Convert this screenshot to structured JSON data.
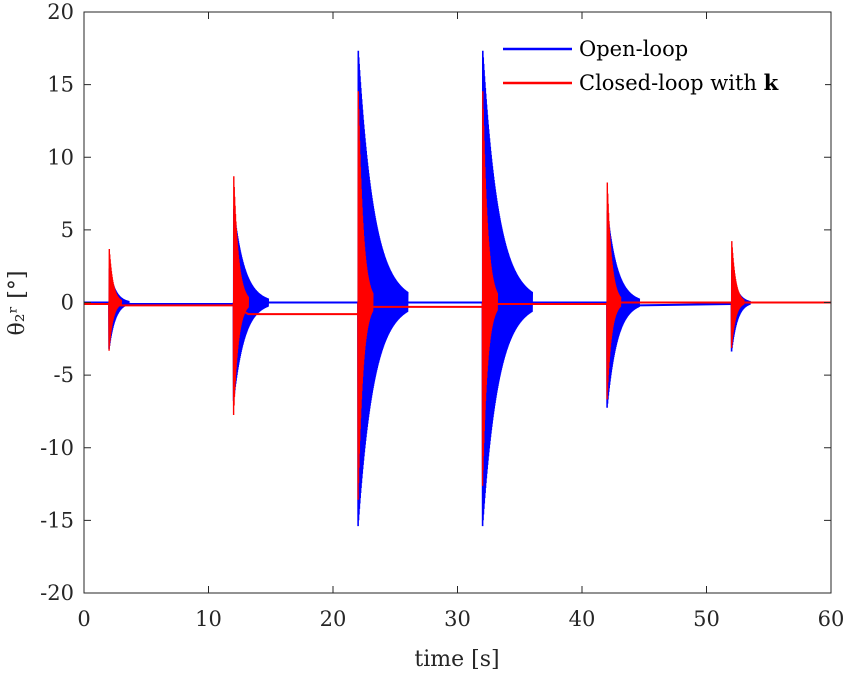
{
  "chart_data": {
    "type": "line",
    "title": "",
    "xlabel": "time [s]",
    "ylabel": "θ₂ʳ [°]",
    "xlim": [
      0,
      60
    ],
    "ylim": [
      -20,
      20
    ],
    "xticks": [
      0,
      10,
      20,
      30,
      40,
      50,
      60
    ],
    "yticks": [
      -20,
      -15,
      -10,
      -5,
      0,
      5,
      10,
      15,
      20
    ],
    "xtick_labels": [
      "0",
      "10",
      "20",
      "30",
      "40",
      "50",
      "60"
    ],
    "ytick_labels": [
      "-20",
      "-15",
      "-10",
      "-5",
      "0",
      "5",
      "10",
      "15",
      "20"
    ],
    "grid": false,
    "legend_position": "top-right",
    "series": [
      {
        "name": "Open-loop",
        "label_text": "Open-loop",
        "color": "#0000ff",
        "baseline": [
          [
            0,
            0
          ],
          [
            2,
            0
          ],
          [
            3.8,
            -0.1
          ],
          [
            12,
            -0.1
          ],
          [
            14.8,
            0
          ],
          [
            22,
            0
          ],
          [
            26,
            0
          ],
          [
            32,
            0
          ],
          [
            36,
            0
          ],
          [
            42,
            0
          ],
          [
            44.5,
            -0.2
          ],
          [
            52,
            -0.1
          ],
          [
            53.5,
            0
          ],
          [
            60,
            0
          ]
        ],
        "bursts": [
          {
            "start": 2.0,
            "duration": 1.6,
            "peak_pos": 2.5,
            "peak_neg": -3.3
          },
          {
            "start": 12.0,
            "duration": 2.8,
            "peak_pos": 6.7,
            "peak_neg": -6.9
          },
          {
            "start": 22.0,
            "duration": 4.0,
            "peak_pos": 17.8,
            "peak_neg": -15.6
          },
          {
            "start": 32.0,
            "duration": 4.0,
            "peak_pos": 17.8,
            "peak_neg": -15.6
          },
          {
            "start": 42.0,
            "duration": 2.6,
            "peak_pos": 6.6,
            "peak_neg": -7.4
          },
          {
            "start": 52.0,
            "duration": 1.5,
            "peak_pos": 2.4,
            "peak_neg": -3.5
          }
        ]
      },
      {
        "name": "Closed-loop with k",
        "label_text": "Closed-loop with ",
        "label_bold": "k",
        "color": "#ff0000",
        "baseline": [
          [
            0,
            -0.1
          ],
          [
            2,
            -0.1
          ],
          [
            3,
            -0.2
          ],
          [
            12,
            -0.2
          ],
          [
            13.2,
            -0.8
          ],
          [
            22,
            -0.8
          ],
          [
            23.2,
            -0.3
          ],
          [
            32,
            -0.3
          ],
          [
            33.2,
            -0.1
          ],
          [
            42,
            -0.1
          ],
          [
            43.2,
            0
          ],
          [
            60,
            0
          ]
        ],
        "bursts": [
          {
            "start": 2.0,
            "duration": 1.0,
            "peak_pos": 4.1,
            "peak_neg": -3.5
          },
          {
            "start": 12.0,
            "duration": 1.2,
            "peak_pos": 9.5,
            "peak_neg": -8.1
          },
          {
            "start": 22.0,
            "duration": 1.2,
            "peak_pos": 15.9,
            "peak_neg": -14.2
          },
          {
            "start": 32.0,
            "duration": 1.2,
            "peak_pos": 15.9,
            "peak_neg": -13.2
          },
          {
            "start": 42.0,
            "duration": 1.1,
            "peak_pos": 9.1,
            "peak_neg": -7.0
          },
          {
            "start": 52.0,
            "duration": 1.0,
            "peak_pos": 4.7,
            "peak_neg": -3.3
          }
        ]
      }
    ]
  }
}
